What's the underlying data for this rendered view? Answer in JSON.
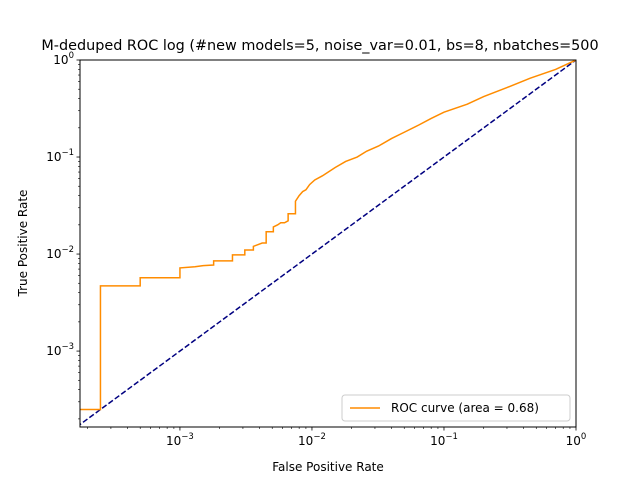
{
  "chart_data": {
    "type": "line",
    "title": "M-deduped ROC log (#new models=5, noise_var=0.01, bs=8, nbatches=500",
    "xlabel": "False Positive Rate",
    "ylabel": "True Positive Rate",
    "xscale": "log",
    "yscale": "log",
    "xlim": [
      0.000175,
      1.0
    ],
    "ylim": [
      0.000165,
      1.0
    ],
    "grid": false,
    "legend_position": "lower right",
    "x_ticks": [
      {
        "value": 0.001,
        "base": "10",
        "exp": "−3"
      },
      {
        "value": 0.01,
        "base": "10",
        "exp": "−2"
      },
      {
        "value": 0.1,
        "base": "10",
        "exp": "−1"
      },
      {
        "value": 1,
        "base": "10",
        "exp": "0"
      }
    ],
    "y_ticks": [
      {
        "value": 0.001,
        "base": "10",
        "exp": "−3"
      },
      {
        "value": 0.01,
        "base": "10",
        "exp": "−2"
      },
      {
        "value": 0.1,
        "base": "10",
        "exp": "−1"
      },
      {
        "value": 1,
        "base": "10",
        "exp": "0"
      }
    ],
    "series": [
      {
        "name": "ROC curve (area = 0.68)",
        "color": "#ff8c00",
        "style": "solid",
        "x": [
          0.000175,
          0.00025,
          0.00025,
          0.0005,
          0.0005,
          0.001,
          0.001,
          0.0013,
          0.0015,
          0.0018,
          0.0018,
          0.0025,
          0.0025,
          0.0031,
          0.0031,
          0.0036,
          0.0036,
          0.0042,
          0.0045,
          0.0045,
          0.0051,
          0.0051,
          0.0055,
          0.0058,
          0.0062,
          0.0066,
          0.0066,
          0.0075,
          0.0075,
          0.008,
          0.0085,
          0.009,
          0.0096,
          0.0105,
          0.012,
          0.015,
          0.018,
          0.022,
          0.026,
          0.032,
          0.04,
          0.05,
          0.065,
          0.08,
          0.1,
          0.15,
          0.2,
          0.3,
          0.45,
          0.7,
          1.0
        ],
        "y": [
          0.00025,
          0.00025,
          0.0047,
          0.0047,
          0.0057,
          0.0057,
          0.0072,
          0.0074,
          0.0076,
          0.0077,
          0.0085,
          0.0085,
          0.0098,
          0.0098,
          0.011,
          0.011,
          0.012,
          0.013,
          0.013,
          0.017,
          0.017,
          0.019,
          0.02,
          0.021,
          0.021,
          0.022,
          0.026,
          0.026,
          0.035,
          0.04,
          0.044,
          0.046,
          0.052,
          0.058,
          0.064,
          0.078,
          0.09,
          0.1,
          0.115,
          0.13,
          0.155,
          0.18,
          0.215,
          0.25,
          0.29,
          0.35,
          0.42,
          0.52,
          0.65,
          0.8,
          1.0
        ]
      },
      {
        "name": "",
        "color": "#000080",
        "style": "dashed",
        "x": [
          0.000165,
          1.0
        ],
        "y": [
          0.000165,
          1.0
        ]
      }
    ],
    "legend": [
      {
        "label": "ROC curve (area = 0.68)",
        "color": "#ff8c00"
      }
    ]
  }
}
